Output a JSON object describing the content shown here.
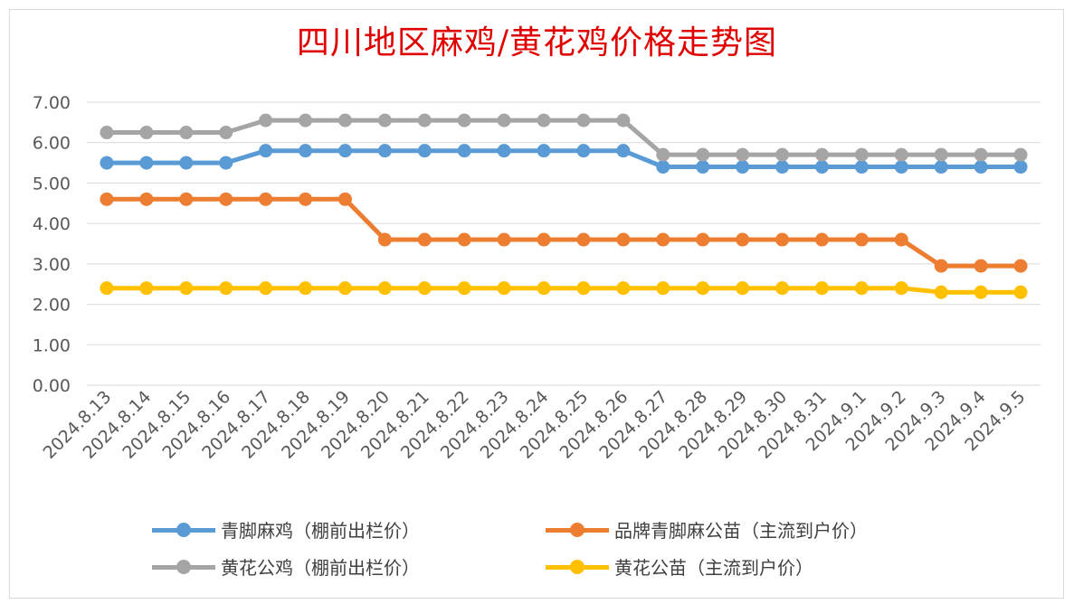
{
  "chart_data": {
    "type": "line",
    "title": "四川地区麻鸡/黄花鸡价格走势图",
    "x": [
      "2024.8.13",
      "2024.8.14",
      "2024.8.15",
      "2024.8.16",
      "2024.8.17",
      "2024.8.18",
      "2024.8.19",
      "2024.8.20",
      "2024.8.21",
      "2024.8.22",
      "2024.8.23",
      "2024.8.24",
      "2024.8.25",
      "2024.8.26",
      "2024.8.27",
      "2024.8.28",
      "2024.8.29",
      "2024.8.30",
      "2024.8.31",
      "2024.9.1",
      "2024.9.2",
      "2024.9.3",
      "2024.9.4",
      "2024.9.5"
    ],
    "y_ticks": [
      "0.00",
      "1.00",
      "2.00",
      "3.00",
      "4.00",
      "5.00",
      "6.00",
      "7.00"
    ],
    "ylim": [
      0,
      7
    ],
    "grid": true,
    "legend_position": "bottom",
    "series": [
      {
        "name": "青脚麻鸡（棚前出栏价）",
        "color": "#5b9bd5",
        "values": [
          5.5,
          5.5,
          5.5,
          5.5,
          5.8,
          5.8,
          5.8,
          5.8,
          5.8,
          5.8,
          5.8,
          5.8,
          5.8,
          5.8,
          5.4,
          5.4,
          5.4,
          5.4,
          5.4,
          5.4,
          5.4,
          5.4,
          5.4,
          5.4
        ]
      },
      {
        "name": "品牌青脚麻公苗（主流到户价）",
        "color": "#ed7d31",
        "values": [
          4.6,
          4.6,
          4.6,
          4.6,
          4.6,
          4.6,
          4.6,
          3.6,
          3.6,
          3.6,
          3.6,
          3.6,
          3.6,
          3.6,
          3.6,
          3.6,
          3.6,
          3.6,
          3.6,
          3.6,
          3.6,
          2.95,
          2.95,
          2.95
        ]
      },
      {
        "name": "黄花公鸡（棚前出栏价）",
        "color": "#a5a5a5",
        "values": [
          6.25,
          6.25,
          6.25,
          6.25,
          6.55,
          6.55,
          6.55,
          6.55,
          6.55,
          6.55,
          6.55,
          6.55,
          6.55,
          6.55,
          5.7,
          5.7,
          5.7,
          5.7,
          5.7,
          5.7,
          5.7,
          5.7,
          5.7,
          5.7
        ]
      },
      {
        "name": "黄花公苗（主流到户价）",
        "color": "#ffc000",
        "values": [
          2.4,
          2.4,
          2.4,
          2.4,
          2.4,
          2.4,
          2.4,
          2.4,
          2.4,
          2.4,
          2.4,
          2.4,
          2.4,
          2.4,
          2.4,
          2.4,
          2.4,
          2.4,
          2.4,
          2.4,
          2.4,
          2.3,
          2.3,
          2.3
        ]
      }
    ]
  }
}
